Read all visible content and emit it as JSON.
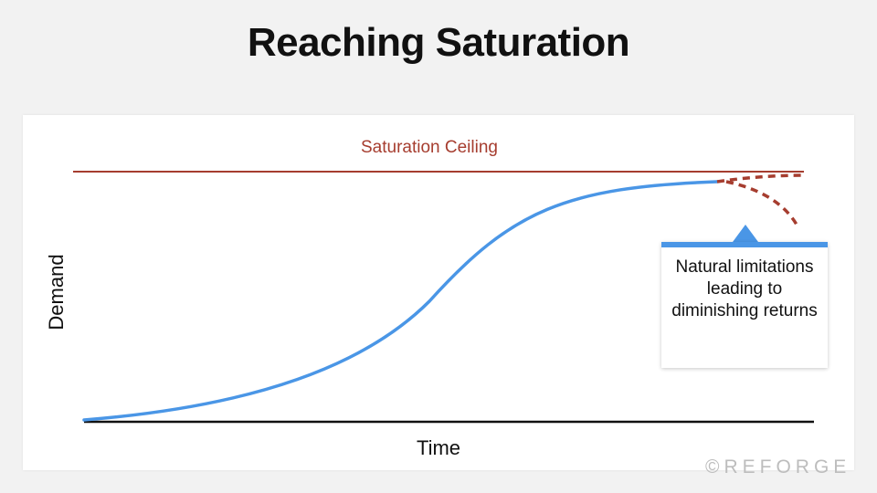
{
  "title": "Reaching Saturation",
  "ceiling_label": "Saturation Ceiling",
  "y_axis_label": "Demand",
  "x_axis_label": "Time",
  "callout_text": "Natural limitations leading to diminishing returns",
  "watermark": "©REFORGE",
  "colors": {
    "curve": "#4a96e6",
    "ceiling": "#a63d2f",
    "dashed_projection": "#a63d2f",
    "axis": "#111111",
    "background": "#f2f2f2",
    "panel": "#ffffff"
  },
  "icons": [
    "callout-pointer-icon"
  ]
}
